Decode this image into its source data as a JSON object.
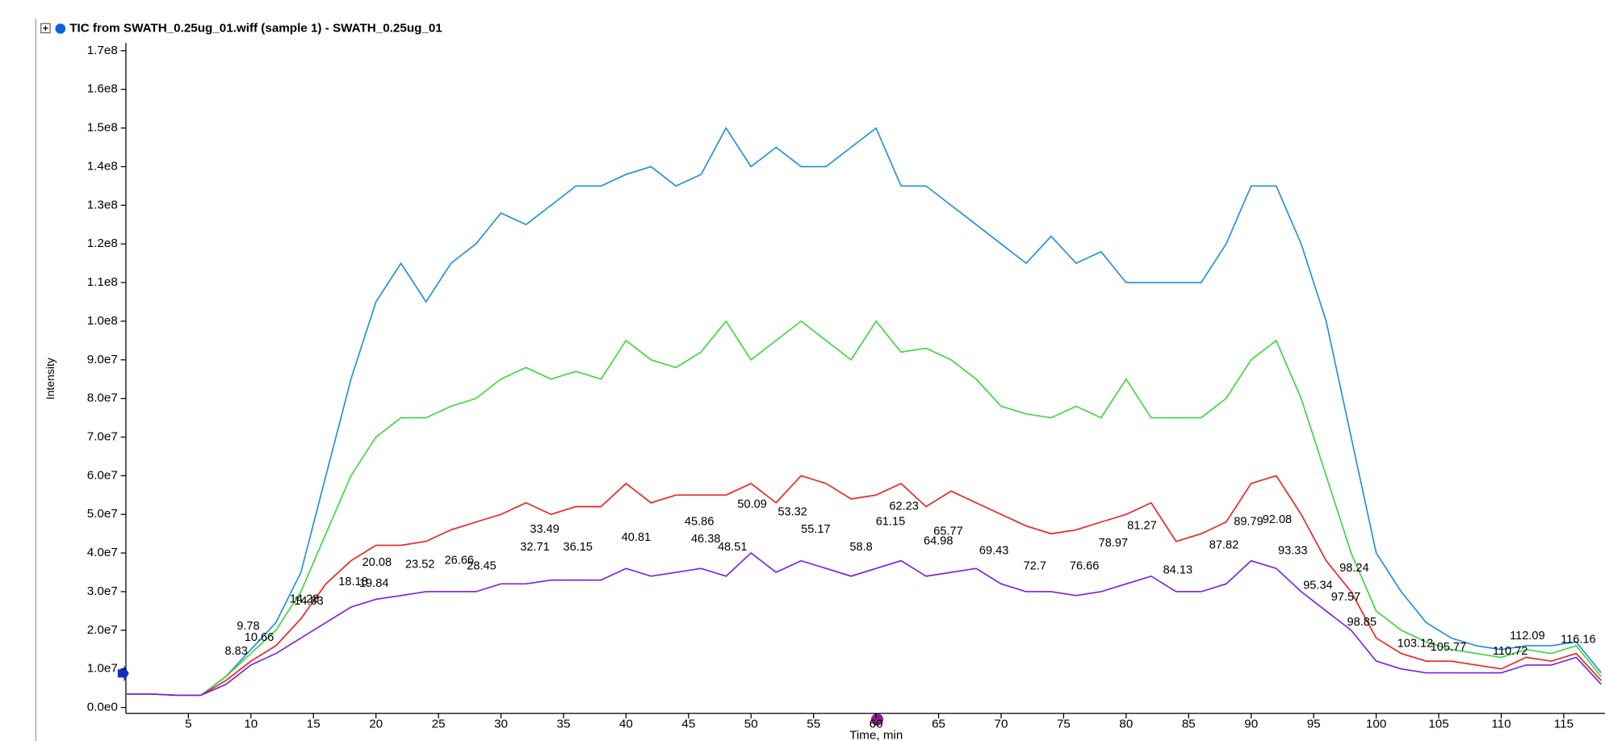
{
  "chart_data": {
    "type": "line",
    "title": "TIC from SWATH_0.25ug_01.wiff (sample 1) - SWATH_0.25ug_01",
    "x_label": "Time, min",
    "y_label": "Intensity",
    "xlim": [
      0,
      118.3
    ],
    "ylim": [
      -1500000.0,
      172000000.0
    ],
    "xticks": [
      5,
      10,
      15,
      20,
      25,
      30,
      35,
      40,
      45,
      50,
      55,
      60,
      65,
      70,
      75,
      80,
      85,
      90,
      95,
      100,
      105,
      110,
      115
    ],
    "yticks": [
      {
        "value": 0,
        "label": "0.0e0"
      },
      {
        "value": 10000000.0,
        "label": "1.0e7"
      },
      {
        "value": 20000000.0,
        "label": "2.0e7"
      },
      {
        "value": 30000000.0,
        "label": "3.0e7"
      },
      {
        "value": 40000000.0,
        "label": "4.0e7"
      },
      {
        "value": 50000000.0,
        "label": "5.0e7"
      },
      {
        "value": 60000000.0,
        "label": "6.0e7"
      },
      {
        "value": 70000000.0,
        "label": "7.0e7"
      },
      {
        "value": 80000000.0,
        "label": "8.0e7"
      },
      {
        "value": 90000000.0,
        "label": "9.0e7"
      },
      {
        "value": 100000000.0,
        "label": "1.0e8"
      },
      {
        "value": 110000000.0,
        "label": "1.1e8"
      },
      {
        "value": 120000000.0,
        "label": "1.2e8"
      },
      {
        "value": 130000000.0,
        "label": "1.3e8"
      },
      {
        "value": 140000000.0,
        "label": "1.4e8"
      },
      {
        "value": 150000000.0,
        "label": "1.5e8"
      },
      {
        "value": 160000000.0,
        "label": "1.6e8"
      },
      {
        "value": 170000000.0,
        "label": "1.7e8"
      }
    ],
    "x": [
      0,
      2,
      4,
      6,
      8,
      10,
      12,
      14,
      16,
      18,
      20,
      22,
      24,
      26,
      28,
      30,
      32,
      34,
      36,
      38,
      40,
      42,
      44,
      46,
      48,
      50,
      52,
      54,
      56,
      58,
      60,
      62,
      64,
      66,
      68,
      70,
      72,
      74,
      76,
      78,
      80,
      82,
      84,
      86,
      88,
      90,
      92,
      94,
      96,
      98,
      100,
      102,
      104,
      106,
      108,
      110,
      112,
      114,
      116,
      118
    ],
    "series": [
      {
        "color": "#1e8fe0",
        "values": [
          3500000.0,
          3500000.0,
          3200000.0,
          3200000.0,
          8000000.0,
          15000000.0,
          22000000.0,
          35000000.0,
          60000000.0,
          85000000.0,
          105000000.0,
          115000000.0,
          105000000.0,
          115000000.0,
          120000000.0,
          128000000.0,
          125000000.0,
          130000000.0,
          135000000.0,
          135000000.0,
          138000000.0,
          140000000.0,
          135000000.0,
          138000000.0,
          150000000.0,
          140000000.0,
          145000000.0,
          140000000.0,
          140000000.0,
          145000000.0,
          150000000.0,
          135000000.0,
          135000000.0,
          130000000.0,
          125000000.0,
          120000000.0,
          115000000.0,
          122000000.0,
          115000000.0,
          118000000.0,
          110000000.0,
          110000000.0,
          110000000.0,
          110000000.0,
          120000000.0,
          135000000.0,
          135000000.0,
          120000000.0,
          100000000.0,
          70000000.0,
          40000000.0,
          30000000.0,
          22000000.0,
          18000000.0,
          16000000.0,
          15000000.0,
          16000000.0,
          16000000.0,
          17000000.0,
          9000000.0
        ]
      },
      {
        "color": "#3cd63c",
        "values": [
          3500000.0,
          3500000.0,
          3200000.0,
          3200000.0,
          8000000.0,
          14000000.0,
          20000000.0,
          30000000.0,
          45000000.0,
          60000000.0,
          70000000.0,
          75000000.0,
          75000000.0,
          78000000.0,
          80000000.0,
          85000000.0,
          88000000.0,
          85000000.0,
          87000000.0,
          85000000.0,
          95000000.0,
          90000000.0,
          88000000.0,
          92000000.0,
          100000000.0,
          90000000.0,
          95000000.0,
          100000000.0,
          95000000.0,
          90000000.0,
          100000000.0,
          92000000.0,
          93000000.0,
          90000000.0,
          85000000.0,
          78000000.0,
          76000000.0,
          75000000.0,
          78000000.0,
          75000000.0,
          85000000.0,
          75000000.0,
          75000000.0,
          75000000.0,
          80000000.0,
          90000000.0,
          95000000.0,
          80000000.0,
          60000000.0,
          40000000.0,
          25000000.0,
          20000000.0,
          17000000.0,
          15000000.0,
          14000000.0,
          13000000.0,
          15000000.0,
          14000000.0,
          16000000.0,
          8000000.0
        ]
      },
      {
        "color": "#f02020",
        "values": [
          3500000.0,
          3500000.0,
          3200000.0,
          3200000.0,
          7000000.0,
          12000000.0,
          16000000.0,
          23000000.0,
          32000000.0,
          38000000.0,
          42000000.0,
          42000000.0,
          43000000.0,
          46000000.0,
          48000000.0,
          50000000.0,
          53000000.0,
          50000000.0,
          52000000.0,
          52000000.0,
          58000000.0,
          53000000.0,
          55000000.0,
          55000000.0,
          55000000.0,
          58000000.0,
          53000000.0,
          60000000.0,
          58000000.0,
          54000000.0,
          55000000.0,
          58000000.0,
          52000000.0,
          56000000.0,
          53000000.0,
          50000000.0,
          47000000.0,
          45000000.0,
          46000000.0,
          48000000.0,
          50000000.0,
          53000000.0,
          43000000.0,
          45000000.0,
          48000000.0,
          58000000.0,
          60000000.0,
          50000000.0,
          38000000.0,
          30000000.0,
          18000000.0,
          14000000.0,
          12000000.0,
          12000000.0,
          11000000.0,
          10000000.0,
          13000000.0,
          12000000.0,
          14000000.0,
          7000000.0
        ]
      },
      {
        "color": "#7b1fe0",
        "values": [
          3500000.0,
          3500000.0,
          3200000.0,
          3200000.0,
          6000000.0,
          11000000.0,
          14000000.0,
          18000000.0,
          22000000.0,
          26000000.0,
          28000000.0,
          29000000.0,
          30000000.0,
          30000000.0,
          30000000.0,
          32000000.0,
          32000000.0,
          33000000.0,
          33000000.0,
          33000000.0,
          36000000.0,
          34000000.0,
          35000000.0,
          36000000.0,
          34000000.0,
          40000000.0,
          35000000.0,
          38000000.0,
          36000000.0,
          34000000.0,
          36000000.0,
          38000000.0,
          34000000.0,
          35000000.0,
          36000000.0,
          32000000.0,
          30000000.0,
          30000000.0,
          29000000.0,
          30000000.0,
          32000000.0,
          34000000.0,
          30000000.0,
          30000000.0,
          32000000.0,
          38000000.0,
          36000000.0,
          30000000.0,
          25000000.0,
          20000000.0,
          12000000.0,
          10000000.0,
          9000000.0,
          9000000.0,
          9000000.0,
          9000000.0,
          11000000.0,
          11000000.0,
          13000000.0,
          6000000.0
        ]
      }
    ],
    "annotations": [
      {
        "x": 9.78,
        "y": 21000000.0
      },
      {
        "x": 8.83,
        "y": 14500000.0
      },
      {
        "x": 10.66,
        "y": 18000000.0
      },
      {
        "x": 14.28,
        "y": 28000000.0
      },
      {
        "x": 14.63,
        "y": 27500000.0
      },
      {
        "x": 18.18,
        "y": 32500000.0
      },
      {
        "x": 20.08,
        "y": 37500000.0
      },
      {
        "x": 19.84,
        "y": 32000000.0
      },
      {
        "x": 23.52,
        "y": 37000000.0
      },
      {
        "x": 26.66,
        "y": 38000000.0
      },
      {
        "x": 28.45,
        "y": 36500000.0
      },
      {
        "x": 32.71,
        "y": 41500000.0
      },
      {
        "x": 33.49,
        "y": 46000000.0
      },
      {
        "x": 36.15,
        "y": 41500000.0
      },
      {
        "x": 40.81,
        "y": 44000000.0
      },
      {
        "x": 46.38,
        "y": 43500000.0
      },
      {
        "x": 45.86,
        "y": 48000000.0
      },
      {
        "x": 48.51,
        "y": 41500000.0
      },
      {
        "x": 50.09,
        "y": 52500000.0
      },
      {
        "x": 53.32,
        "y": 50500000.0
      },
      {
        "x": 55.17,
        "y": 46000000.0
      },
      {
        "x": 58.8,
        "y": 41500000.0
      },
      {
        "x": 61.15,
        "y": 48000000.0
      },
      {
        "x": 62.23,
        "y": 52000000.0
      },
      {
        "x": 64.98,
        "y": 43000000.0
      },
      {
        "x": 65.77,
        "y": 45500000.0
      },
      {
        "x": 69.43,
        "y": 40500000.0
      },
      {
        "x": 72.7,
        "y": 36500000.0
      },
      {
        "x": 76.66,
        "y": 36500000.0
      },
      {
        "x": 78.97,
        "y": 42500000.0
      },
      {
        "x": 81.27,
        "y": 47000000.0
      },
      {
        "x": 84.13,
        "y": 35500000.0
      },
      {
        "x": 87.82,
        "y": 42000000.0
      },
      {
        "x": 89.79,
        "y": 48000000.0
      },
      {
        "x": 92.08,
        "y": 48500000.0
      },
      {
        "x": 93.33,
        "y": 40500000.0
      },
      {
        "x": 95.34,
        "y": 31500000.0
      },
      {
        "x": 98.24,
        "y": 36000000.0
      },
      {
        "x": 97.57,
        "y": 28500000.0
      },
      {
        "x": 98.85,
        "y": 22000000.0
      },
      {
        "x": 103.12,
        "y": 16500000.0
      },
      {
        "x": 105.77,
        "y": 15500000.0
      },
      {
        "x": 110.72,
        "y": 14500000.0
      },
      {
        "x": 112.09,
        "y": 18500000.0
      },
      {
        "x": 116.16,
        "y": 17500000.0
      }
    ]
  }
}
